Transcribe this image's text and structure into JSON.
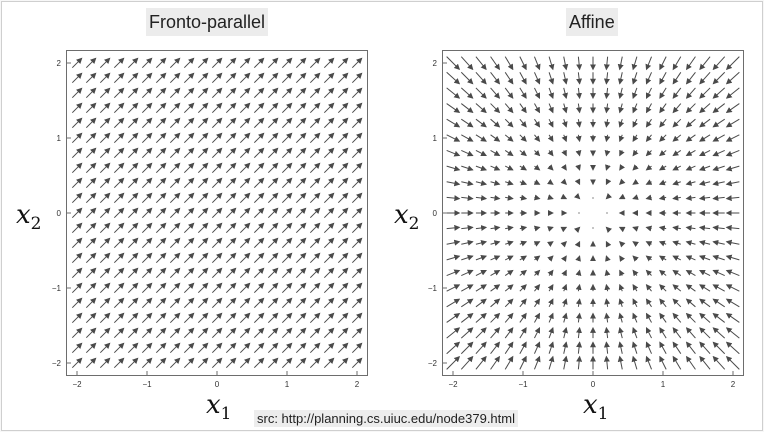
{
  "panels": [
    {
      "title": "Fronto-parallel",
      "xlabel": {
        "var": "x",
        "sub": "1"
      },
      "ylabel": {
        "var": "x",
        "sub": "2"
      },
      "xlim": [
        -2,
        2
      ],
      "ylim": [
        -2,
        2
      ],
      "xticks": [
        "−2",
        "−1",
        "0",
        "1",
        "2"
      ],
      "yticks": [
        "2",
        "1",
        "0",
        "−1",
        "−2"
      ],
      "field": "constant",
      "grid_n": 21
    },
    {
      "title": "Affine",
      "xlabel": {
        "var": "x",
        "sub": "1"
      },
      "ylabel": {
        "var": "x",
        "sub": "2"
      },
      "xlim": [
        -2,
        2
      ],
      "ylim": [
        -2,
        2
      ],
      "xticks": [
        "−2",
        "−1",
        "0",
        "1",
        "2"
      ],
      "yticks": [
        "2",
        "1",
        "0",
        "−1",
        "−2"
      ],
      "field": "radial-inward",
      "grid_n": 21
    }
  ],
  "source": "src: http://planning.cs.uiuc.edu/node379.html",
  "colors": {
    "arrow": "#4a4a4a",
    "axis": "#6d6d6d",
    "tick_label": "#333333"
  }
}
